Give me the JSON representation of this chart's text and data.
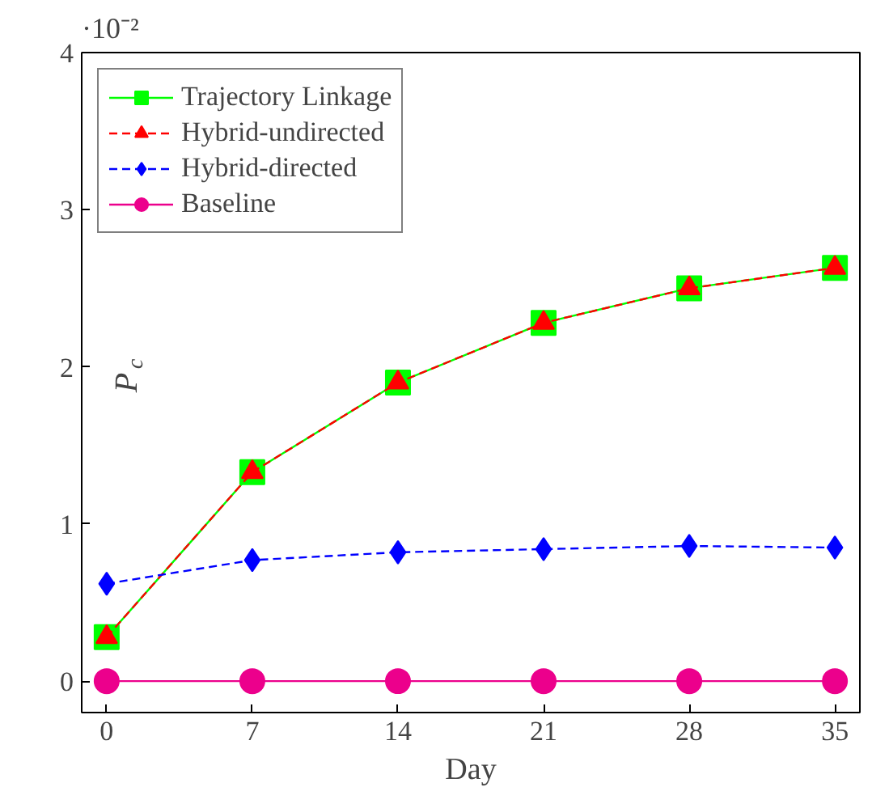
{
  "chart_data": {
    "type": "line",
    "xlabel": "Day",
    "ylabel": "P$_{c}$",
    "annotations": [
      "·10⁻²"
    ],
    "x": [
      0,
      7,
      14,
      21,
      28,
      35
    ],
    "xlim": [
      -1.2,
      36.2
    ],
    "xticks": [
      0,
      7,
      14,
      21,
      28,
      35
    ],
    "ylim": [
      -0.2,
      4
    ],
    "yticks": [
      0,
      1,
      2,
      3,
      4
    ],
    "legend": "top left",
    "grid": false,
    "series": [
      {
        "name": "Trajectory Linkage",
        "color": "#00ff00",
        "marker": "square",
        "line_style": "solid",
        "values": [
          0.28,
          1.33,
          1.9,
          2.28,
          2.5,
          2.63
        ]
      },
      {
        "name": "Hybrid-undirected",
        "color": "#ff0000",
        "marker": "triangle",
        "line_style": "dashed",
        "values": [
          0.28,
          1.33,
          1.9,
          2.28,
          2.5,
          2.63
        ]
      },
      {
        "name": "Hybrid-directed",
        "color": "#0000ff",
        "marker": "diamond",
        "line_style": "dashed",
        "values": [
          0.62,
          0.77,
          0.82,
          0.84,
          0.86,
          0.85
        ]
      },
      {
        "name": "Baseline",
        "color": "#ec008c",
        "marker": "circle",
        "line_style": "solid",
        "values": [
          0,
          0,
          0,
          0,
          0,
          0
        ]
      }
    ]
  }
}
